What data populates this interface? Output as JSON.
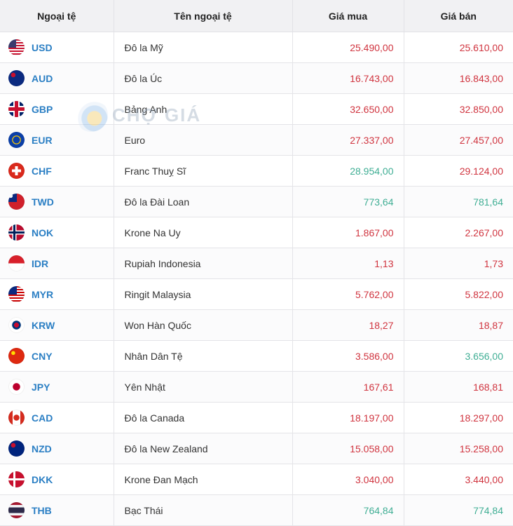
{
  "table": {
    "headers": [
      "Ngoại tệ",
      "Tên ngoại tệ",
      "Giá mua",
      "Giá bán"
    ],
    "rows": [
      {
        "code": "USD",
        "flag": "us-flag-icon",
        "name": "Đô la Mỹ",
        "buy": "25.490,00",
        "sell": "25.610,00",
        "buy_color": "#d0343f",
        "sell_color": "#d0343f"
      },
      {
        "code": "AUD",
        "flag": "au-flag-icon",
        "name": "Đô la Úc",
        "buy": "16.743,00",
        "sell": "16.843,00",
        "buy_color": "#d0343f",
        "sell_color": "#d0343f"
      },
      {
        "code": "GBP",
        "flag": "gb-flag-icon",
        "name": "Bảng Anh",
        "buy": "32.650,00",
        "sell": "32.850,00",
        "buy_color": "#d0343f",
        "sell_color": "#d0343f"
      },
      {
        "code": "EUR",
        "flag": "eu-flag-icon",
        "name": "Euro",
        "buy": "27.337,00",
        "sell": "27.457,00",
        "buy_color": "#d0343f",
        "sell_color": "#d0343f"
      },
      {
        "code": "CHF",
        "flag": "ch-flag-icon",
        "name": "Franc Thuỵ Sĩ",
        "buy": "28.954,00",
        "sell": "29.124,00",
        "buy_color": "#3fae94",
        "sell_color": "#d0343f"
      },
      {
        "code": "TWD",
        "flag": "tw-flag-icon",
        "name": "Đô la Đài Loan",
        "buy": "773,64",
        "sell": "781,64",
        "buy_color": "#3fae94",
        "sell_color": "#3fae94"
      },
      {
        "code": "NOK",
        "flag": "no-flag-icon",
        "name": "Krone Na Uy",
        "buy": "1.867,00",
        "sell": "2.267,00",
        "buy_color": "#d0343f",
        "sell_color": "#d0343f"
      },
      {
        "code": "IDR",
        "flag": "id-flag-icon",
        "name": "Rupiah Indonesia",
        "buy": "1,13",
        "sell": "1,73",
        "buy_color": "#d0343f",
        "sell_color": "#d0343f"
      },
      {
        "code": "MYR",
        "flag": "my-flag-icon",
        "name": "Ringit Malaysia",
        "buy": "5.762,00",
        "sell": "5.822,00",
        "buy_color": "#d0343f",
        "sell_color": "#d0343f"
      },
      {
        "code": "KRW",
        "flag": "kr-flag-icon",
        "name": "Won Hàn Quốc",
        "buy": "18,27",
        "sell": "18,87",
        "buy_color": "#d0343f",
        "sell_color": "#d0343f"
      },
      {
        "code": "CNY",
        "flag": "cn-flag-icon",
        "name": "Nhân Dân Tệ",
        "buy": "3.586,00",
        "sell": "3.656,00",
        "buy_color": "#d0343f",
        "sell_color": "#3fae94"
      },
      {
        "code": "JPY",
        "flag": "jp-flag-icon",
        "name": "Yên Nhật",
        "buy": "167,61",
        "sell": "168,81",
        "buy_color": "#d0343f",
        "sell_color": "#d0343f"
      },
      {
        "code": "CAD",
        "flag": "ca-flag-icon",
        "name": "Đô la Canada",
        "buy": "18.197,00",
        "sell": "18.297,00",
        "buy_color": "#d0343f",
        "sell_color": "#d0343f"
      },
      {
        "code": "NZD",
        "flag": "nz-flag-icon",
        "name": "Đô la New Zealand",
        "buy": "15.058,00",
        "sell": "15.258,00",
        "buy_color": "#d0343f",
        "sell_color": "#d0343f"
      },
      {
        "code": "DKK",
        "flag": "dk-flag-icon",
        "name": "Krone Đan Mạch",
        "buy": "3.040,00",
        "sell": "3.440,00",
        "buy_color": "#d0343f",
        "sell_color": "#d0343f"
      },
      {
        "code": "THB",
        "flag": "th-flag-icon",
        "name": "Bạc Thái",
        "buy": "764,84",
        "sell": "774,84",
        "buy_color": "#3fae94",
        "sell_color": "#3fae94"
      }
    ]
  },
  "watermark": {
    "text": "CHỢ GIÁ",
    "logo": "cho-gia-logo-icon"
  },
  "colors": {
    "code": "#2b7fc4",
    "up": "#3fae94",
    "down": "#d0343f"
  }
}
